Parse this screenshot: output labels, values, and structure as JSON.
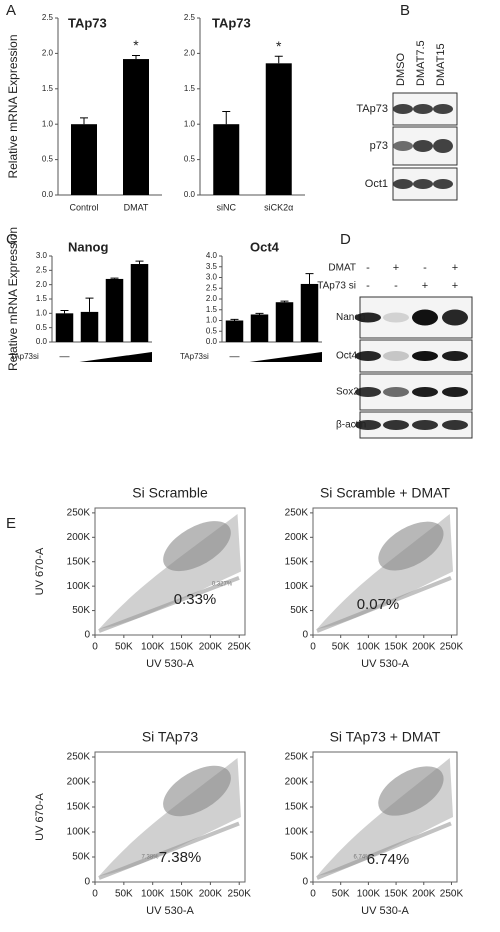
{
  "panel_labels": [
    "A",
    "B",
    "C",
    "D",
    "E"
  ],
  "chart_data": [
    {
      "type": "bar",
      "title": "TAp73",
      "y_label": "Relative mRNA Expression",
      "categories": [
        "Control",
        "DMAT"
      ],
      "series": [
        {
          "color": "#000000",
          "values": [
            1.0,
            1.92
          ],
          "errors": [
            0.09,
            0.05
          ]
        }
      ],
      "significance": [
        null,
        "*"
      ],
      "ylim": [
        0,
        2.5
      ],
      "yticks": [
        {
          "value": 0,
          "label": "0.0"
        },
        {
          "value": 0.5,
          "label": "0.5"
        },
        {
          "value": 1,
          "label": "1.0"
        },
        {
          "value": 1.5,
          "label": "1.5"
        },
        {
          "value": 2,
          "label": "2.0"
        },
        {
          "value": 2.5,
          "label": "2.5"
        }
      ]
    },
    {
      "type": "bar",
      "title": "TAp73",
      "categories": [
        "siNC",
        "siCK2α"
      ],
      "series": [
        {
          "color": "#000000",
          "values": [
            1.0,
            1.86
          ],
          "errors": [
            0.18,
            0.1
          ]
        }
      ],
      "significance": [
        null,
        "*"
      ],
      "ylim": [
        0,
        2.5
      ],
      "yticks": [
        {
          "value": 0,
          "label": "0.0"
        },
        {
          "value": 0.5,
          "label": "0.5"
        },
        {
          "value": 1,
          "label": "1.0"
        },
        {
          "value": 1.5,
          "label": "1.5"
        },
        {
          "value": 2,
          "label": "2.0"
        },
        {
          "value": 2.5,
          "label": "2.5"
        }
      ]
    },
    {
      "type": "bar",
      "title": "Nanog",
      "y_label": "Relative mRNA Expression",
      "x_label": "TAp73si",
      "x_annotation": "—",
      "categories": [
        null,
        null,
        null,
        null
      ],
      "series": [
        {
          "color": "#000000",
          "values": [
            1.0,
            1.05,
            2.2,
            2.72
          ],
          "errors": [
            0.1,
            0.48,
            0.03,
            0.1
          ]
        }
      ],
      "ylim": [
        0,
        3
      ],
      "yticks": [
        {
          "value": 0,
          "label": "0.0"
        },
        {
          "value": 0.5,
          "label": "0.5"
        },
        {
          "value": 1,
          "label": "1.0"
        },
        {
          "value": 1.5,
          "label": "1.5"
        },
        {
          "value": 2,
          "label": "2.0"
        },
        {
          "value": 2.5,
          "label": "2.5"
        },
        {
          "value": 3,
          "label": "3.0"
        }
      ]
    },
    {
      "type": "bar",
      "title": "Oct4",
      "x_label": "TAp73si",
      "x_annotation": "—",
      "categories": [
        null,
        null,
        null,
        null
      ],
      "series": [
        {
          "color": "#000000",
          "values": [
            1.0,
            1.28,
            1.85,
            2.7
          ],
          "errors": [
            0.05,
            0.05,
            0.05,
            0.48
          ]
        }
      ],
      "ylim": [
        0,
        4
      ],
      "yticks": [
        {
          "value": 0,
          "label": "0.0"
        },
        {
          "value": 0.5,
          "label": "0.5"
        },
        {
          "value": 1,
          "label": "1.0"
        },
        {
          "value": 1.5,
          "label": "1.5"
        },
        {
          "value": 2,
          "label": "2.0"
        },
        {
          "value": 2.5,
          "label": "2.5"
        },
        {
          "value": 3,
          "label": "3.0"
        },
        {
          "value": 3.5,
          "label": "3.5"
        },
        {
          "value": 4,
          "label": "4.0"
        }
      ]
    }
  ],
  "blot_b": {
    "lanes": [
      "DMSO",
      "DMAT7.5",
      "DMAT15"
    ],
    "rows": [
      "TAp73",
      "p73",
      "Oct1"
    ]
  },
  "blot_d": {
    "conditions": [
      {
        "name": "DMAT",
        "signs": [
          "-",
          "+",
          "-",
          "+"
        ]
      },
      {
        "name": "TAp73 si",
        "signs": [
          "-",
          "-",
          "+",
          "+"
        ]
      }
    ],
    "rows": [
      "Nanog",
      "Oct4",
      "Sox2",
      "β-actin"
    ]
  },
  "flow": {
    "x_label": "UV 530-A",
    "y_label": "UV 670-A",
    "lim": [
      0,
      260000
    ],
    "ticks": [
      0,
      {
        "value": 50000,
        "label": "50K"
      },
      {
        "value": 100000,
        "label": "100K"
      },
      {
        "value": 150000,
        "label": "150K"
      },
      {
        "value": 200000,
        "label": "200K"
      },
      {
        "value": 250000,
        "label": "250K"
      }
    ],
    "plots": [
      {
        "title": "Si Scramble",
        "percent": "0.33%",
        "gate_label": "0.327%"
      },
      {
        "title": "Si Scramble + DMAT",
        "percent": "0.07%",
        "gate_label": null
      },
      {
        "title": "Si TAp73",
        "percent": "7.38%",
        "gate_label": "7.38%"
      },
      {
        "title": "Si TAp73 + DMAT",
        "percent": "6.74%",
        "gate_label": "6.74%"
      }
    ]
  }
}
